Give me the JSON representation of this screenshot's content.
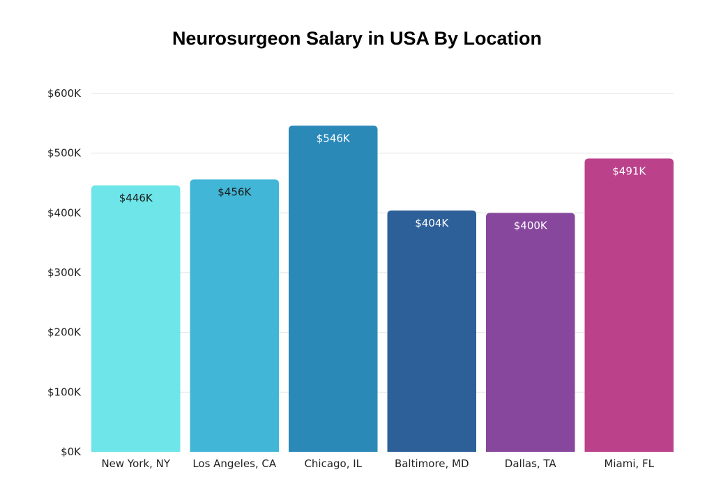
{
  "chart_data": {
    "type": "bar",
    "title": "Neurosurgeon Salary in USA By Location",
    "xlabel": "",
    "ylabel": "",
    "ylim": [
      0,
      600
    ],
    "yticks": [
      0,
      100,
      200,
      300,
      400,
      500,
      600
    ],
    "ytick_labels": [
      "$0K",
      "$100K",
      "$200K",
      "$300K",
      "$400K",
      "$500K",
      "$600K"
    ],
    "grid": true,
    "categories": [
      "New York, NY",
      "Los Angeles, CA",
      "Chicago, IL",
      "Baltimore, MD",
      "Dallas, TA",
      "Miami, FL"
    ],
    "values": [
      446,
      456,
      546,
      404,
      400,
      491
    ],
    "value_labels": [
      "$446K",
      "$456K",
      "$546K",
      "$404K",
      "$400K",
      "$491K"
    ],
    "colors": [
      "#6de5e9",
      "#42b6d6",
      "#2b89b8",
      "#2d5f98",
      "#87479d",
      "#bb418b"
    ],
    "label_colors": [
      "#1a1a1a",
      "#1a1a1a",
      "#ffffff",
      "#ffffff",
      "#ffffff",
      "#ffffff"
    ]
  }
}
